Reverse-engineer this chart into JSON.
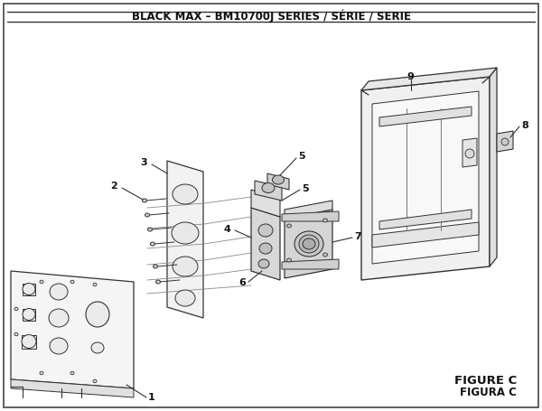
{
  "title": "BLACK MAX – BM10700J SERIES / SÉRIE / SERIE",
  "figure_label": "FIGURE C",
  "figura_label": "FIGURA C",
  "bg_color": "#ffffff",
  "lc": "#333333",
  "lc_light": "#777777",
  "fc_panel": "#f0f0f0",
  "fc_mid": "#e8e8e8",
  "fc_dark": "#d0d0d0",
  "fc_box": "#eeeeee",
  "title_fontsize": 8.5,
  "label_fontsize": 8.0,
  "fig_label_fontsize": 9.5
}
